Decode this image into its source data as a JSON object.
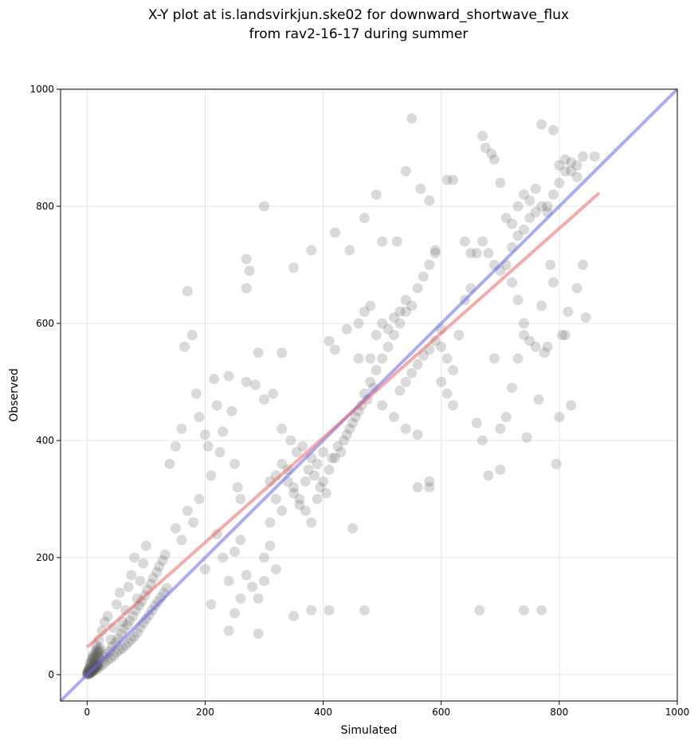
{
  "chart_data": {
    "type": "scatter",
    "title": "X-Y plot at is.landsvirkjun.ske02 for downward_shortwave_flux",
    "subtitle": "from rav2-16-17 during summer",
    "xlabel": "Simulated",
    "ylabel": "Observed",
    "xlim": [
      -45,
      1000
    ],
    "ylim": [
      -45,
      1000
    ],
    "xticks": [
      0,
      200,
      400,
      600,
      800,
      1000
    ],
    "yticks": [
      0,
      200,
      400,
      600,
      800,
      1000
    ],
    "grid": true,
    "points_color": "#555555",
    "one_to_one_line": {
      "x": [
        -45,
        1000
      ],
      "y": [
        -45,
        1000
      ],
      "color": "#6666ee"
    },
    "regression_line": {
      "x": [
        0,
        868
      ],
      "y": [
        47,
        823
      ],
      "color": "#ee6666"
    },
    "points": [
      [
        0,
        2
      ],
      [
        1,
        5
      ],
      [
        2,
        3
      ],
      [
        3,
        8
      ],
      [
        4,
        1
      ],
      [
        5,
        6
      ],
      [
        6,
        10
      ],
      [
        8,
        4
      ],
      [
        10,
        14
      ],
      [
        12,
        7
      ],
      [
        14,
        18
      ],
      [
        16,
        9
      ],
      [
        18,
        22
      ],
      [
        20,
        12
      ],
      [
        22,
        26
      ],
      [
        25,
        16
      ],
      [
        28,
        30
      ],
      [
        30,
        20
      ],
      [
        32,
        35
      ],
      [
        35,
        25
      ],
      [
        38,
        40
      ],
      [
        40,
        28
      ],
      [
        42,
        48
      ],
      [
        45,
        32
      ],
      [
        48,
        55
      ],
      [
        50,
        38
      ],
      [
        52,
        62
      ],
      [
        55,
        42
      ],
      [
        58,
        70
      ],
      [
        60,
        45
      ],
      [
        62,
        78
      ],
      [
        65,
        50
      ],
      [
        68,
        85
      ],
      [
        70,
        55
      ],
      [
        72,
        92
      ],
      [
        75,
        60
      ],
      [
        78,
        100
      ],
      [
        80,
        65
      ],
      [
        82,
        110
      ],
      [
        85,
        72
      ],
      [
        88,
        118
      ],
      [
        90,
        80
      ],
      [
        92,
        125
      ],
      [
        95,
        88
      ],
      [
        98,
        135
      ],
      [
        100,
        95
      ],
      [
        102,
        145
      ],
      [
        105,
        102
      ],
      [
        108,
        155
      ],
      [
        110,
        110
      ],
      [
        112,
        165
      ],
      [
        115,
        118
      ],
      [
        118,
        175
      ],
      [
        120,
        125
      ],
      [
        122,
        185
      ],
      [
        125,
        132
      ],
      [
        128,
        195
      ],
      [
        130,
        140
      ],
      [
        132,
        205
      ],
      [
        135,
        148
      ],
      [
        5,
        20
      ],
      [
        10,
        35
      ],
      [
        15,
        50
      ],
      [
        20,
        60
      ],
      [
        25,
        75
      ],
      [
        30,
        90
      ],
      [
        35,
        100
      ],
      [
        40,
        60
      ],
      [
        45,
        80
      ],
      [
        50,
        120
      ],
      [
        55,
        140
      ],
      [
        60,
        90
      ],
      [
        65,
        110
      ],
      [
        70,
        150
      ],
      [
        75,
        170
      ],
      [
        80,
        200
      ],
      [
        85,
        130
      ],
      [
        90,
        160
      ],
      [
        95,
        190
      ],
      [
        100,
        220
      ],
      [
        140,
        360
      ],
      [
        150,
        390
      ],
      [
        160,
        420
      ],
      [
        165,
        560
      ],
      [
        170,
        655
      ],
      [
        178,
        580
      ],
      [
        185,
        480
      ],
      [
        190,
        440
      ],
      [
        200,
        410
      ],
      [
        205,
        390
      ],
      [
        210,
        340
      ],
      [
        215,
        505
      ],
      [
        220,
        460
      ],
      [
        225,
        380
      ],
      [
        230,
        415
      ],
      [
        240,
        510
      ],
      [
        245,
        450
      ],
      [
        250,
        360
      ],
      [
        255,
        320
      ],
      [
        260,
        300
      ],
      [
        150,
        250
      ],
      [
        160,
        230
      ],
      [
        170,
        280
      ],
      [
        180,
        260
      ],
      [
        190,
        300
      ],
      [
        200,
        180
      ],
      [
        210,
        120
      ],
      [
        220,
        240
      ],
      [
        230,
        200
      ],
      [
        240,
        160
      ],
      [
        250,
        210
      ],
      [
        260,
        230
      ],
      [
        270,
        170
      ],
      [
        280,
        150
      ],
      [
        290,
        130
      ],
      [
        300,
        200
      ],
      [
        310,
        260
      ],
      [
        320,
        300
      ],
      [
        330,
        280
      ],
      [
        340,
        350
      ],
      [
        240,
        75
      ],
      [
        250,
        105
      ],
      [
        260,
        130
      ],
      [
        290,
        70
      ],
      [
        300,
        160
      ],
      [
        310,
        220
      ],
      [
        320,
        180
      ],
      [
        350,
        100
      ],
      [
        380,
        110
      ],
      [
        410,
        110
      ],
      [
        450,
        250
      ],
      [
        470,
        110
      ],
      [
        270,
        660
      ],
      [
        270,
        710
      ],
      [
        275,
        690
      ],
      [
        300,
        800
      ],
      [
        290,
        550
      ],
      [
        330,
        550
      ],
      [
        350,
        695
      ],
      [
        380,
        725
      ],
      [
        270,
        500
      ],
      [
        285,
        495
      ],
      [
        300,
        470
      ],
      [
        315,
        480
      ],
      [
        330,
        420
      ],
      [
        345,
        400
      ],
      [
        355,
        380
      ],
      [
        365,
        390
      ],
      [
        375,
        350
      ],
      [
        385,
        340
      ],
      [
        395,
        320
      ],
      [
        405,
        310
      ],
      [
        415,
        370
      ],
      [
        425,
        390
      ],
      [
        435,
        400
      ],
      [
        445,
        420
      ],
      [
        455,
        440
      ],
      [
        465,
        460
      ],
      [
        475,
        470
      ],
      [
        485,
        490
      ],
      [
        350,
        320
      ],
      [
        360,
        300
      ],
      [
        370,
        280
      ],
      [
        380,
        260
      ],
      [
        390,
        300
      ],
      [
        400,
        330
      ],
      [
        410,
        350
      ],
      [
        420,
        370
      ],
      [
        430,
        380
      ],
      [
        440,
        410
      ],
      [
        450,
        430
      ],
      [
        460,
        450
      ],
      [
        470,
        480
      ],
      [
        480,
        500
      ],
      [
        490,
        520
      ],
      [
        500,
        540
      ],
      [
        510,
        560
      ],
      [
        520,
        580
      ],
      [
        530,
        600
      ],
      [
        540,
        620
      ],
      [
        410,
        570
      ],
      [
        420,
        555
      ],
      [
        440,
        590
      ],
      [
        460,
        600
      ],
      [
        470,
        620
      ],
      [
        480,
        630
      ],
      [
        490,
        580
      ],
      [
        500,
        600
      ],
      [
        510,
        590
      ],
      [
        520,
        610
      ],
      [
        530,
        620
      ],
      [
        540,
        640
      ],
      [
        550,
        630
      ],
      [
        560,
        660
      ],
      [
        570,
        680
      ],
      [
        580,
        700
      ],
      [
        590,
        720
      ],
      [
        600,
        560
      ],
      [
        610,
        540
      ],
      [
        620,
        520
      ],
      [
        420,
        755
      ],
      [
        445,
        725
      ],
      [
        470,
        780
      ],
      [
        490,
        820
      ],
      [
        500,
        740
      ],
      [
        525,
        740
      ],
      [
        540,
        860
      ],
      [
        550,
        950
      ],
      [
        565,
        830
      ],
      [
        580,
        810
      ],
      [
        590,
        725
      ],
      [
        610,
        845
      ],
      [
        620,
        845
      ],
      [
        460,
        540
      ],
      [
        480,
        540
      ],
      [
        500,
        460
      ],
      [
        520,
        440
      ],
      [
        540,
        420
      ],
      [
        560,
        410
      ],
      [
        580,
        330
      ],
      [
        560,
        320
      ],
      [
        580,
        320
      ],
      [
        600,
        500
      ],
      [
        610,
        480
      ],
      [
        620,
        460
      ],
      [
        630,
        580
      ],
      [
        640,
        640
      ],
      [
        650,
        660
      ],
      [
        660,
        430
      ],
      [
        665,
        110
      ],
      [
        670,
        400
      ],
      [
        680,
        340
      ],
      [
        690,
        540
      ],
      [
        700,
        350
      ],
      [
        700,
        420
      ],
      [
        710,
        440
      ],
      [
        720,
        490
      ],
      [
        730,
        540
      ],
      [
        740,
        580
      ],
      [
        745,
        405
      ],
      [
        640,
        740
      ],
      [
        650,
        720
      ],
      [
        660,
        720
      ],
      [
        670,
        740
      ],
      [
        680,
        720
      ],
      [
        690,
        700
      ],
      [
        700,
        690
      ],
      [
        710,
        700
      ],
      [
        720,
        730
      ],
      [
        730,
        750
      ],
      [
        740,
        760
      ],
      [
        750,
        780
      ],
      [
        760,
        790
      ],
      [
        770,
        800
      ],
      [
        780,
        790
      ],
      [
        790,
        820
      ],
      [
        800,
        840
      ],
      [
        810,
        860
      ],
      [
        820,
        860
      ],
      [
        830,
        870
      ],
      [
        670,
        920
      ],
      [
        675,
        900
      ],
      [
        685,
        890
      ],
      [
        690,
        880
      ],
      [
        700,
        840
      ],
      [
        710,
        780
      ],
      [
        720,
        770
      ],
      [
        730,
        800
      ],
      [
        740,
        820
      ],
      [
        750,
        810
      ],
      [
        760,
        830
      ],
      [
        770,
        940
      ],
      [
        780,
        800
      ],
      [
        790,
        930
      ],
      [
        800,
        870
      ],
      [
        810,
        880
      ],
      [
        820,
        875
      ],
      [
        830,
        850
      ],
      [
        840,
        885
      ],
      [
        860,
        885
      ],
      [
        720,
        670
      ],
      [
        730,
        640
      ],
      [
        740,
        600
      ],
      [
        750,
        570
      ],
      [
        760,
        560
      ],
      [
        765,
        470
      ],
      [
        770,
        630
      ],
      [
        775,
        550
      ],
      [
        780,
        560
      ],
      [
        785,
        700
      ],
      [
        790,
        670
      ],
      [
        795,
        360
      ],
      [
        800,
        440
      ],
      [
        805,
        580
      ],
      [
        810,
        580
      ],
      [
        815,
        620
      ],
      [
        820,
        460
      ],
      [
        830,
        660
      ],
      [
        840,
        700
      ],
      [
        845,
        610
      ],
      [
        740,
        110
      ],
      [
        770,
        110
      ],
      [
        600,
        590
      ],
      [
        590,
        570
      ],
      [
        580,
        555
      ],
      [
        570,
        545
      ],
      [
        560,
        530
      ],
      [
        550,
        515
      ],
      [
        540,
        500
      ],
      [
        530,
        485
      ],
      [
        310,
        330
      ],
      [
        320,
        340
      ],
      [
        330,
        360
      ],
      [
        340,
        330
      ],
      [
        350,
        310
      ],
      [
        360,
        290
      ],
      [
        370,
        330
      ],
      [
        380,
        370
      ],
      [
        390,
        360
      ],
      [
        400,
        380
      ],
      [
        0,
        0
      ],
      [
        1,
        2
      ],
      [
        2,
        1
      ],
      [
        3,
        4
      ],
      [
        4,
        2
      ],
      [
        5,
        3
      ],
      [
        6,
        5
      ],
      [
        7,
        4
      ],
      [
        8,
        6
      ],
      [
        9,
        7
      ],
      [
        10,
        8
      ],
      [
        11,
        9
      ],
      [
        12,
        10
      ],
      [
        13,
        11
      ],
      [
        14,
        12
      ],
      [
        15,
        13
      ],
      [
        16,
        14
      ],
      [
        17,
        15
      ],
      [
        18,
        16
      ],
      [
        19,
        17
      ],
      [
        2,
        6
      ],
      [
        3,
        10
      ],
      [
        4,
        12
      ],
      [
        6,
        15
      ],
      [
        7,
        20
      ],
      [
        8,
        25
      ],
      [
        9,
        28
      ],
      [
        10,
        30
      ],
      [
        11,
        18
      ],
      [
        12,
        22
      ],
      [
        13,
        26
      ],
      [
        14,
        32
      ],
      [
        15,
        36
      ],
      [
        16,
        40
      ],
      [
        17,
        44
      ],
      [
        18,
        28
      ],
      [
        19,
        33
      ],
      [
        20,
        38
      ],
      [
        21,
        42
      ],
      [
        22,
        46
      ]
    ]
  }
}
